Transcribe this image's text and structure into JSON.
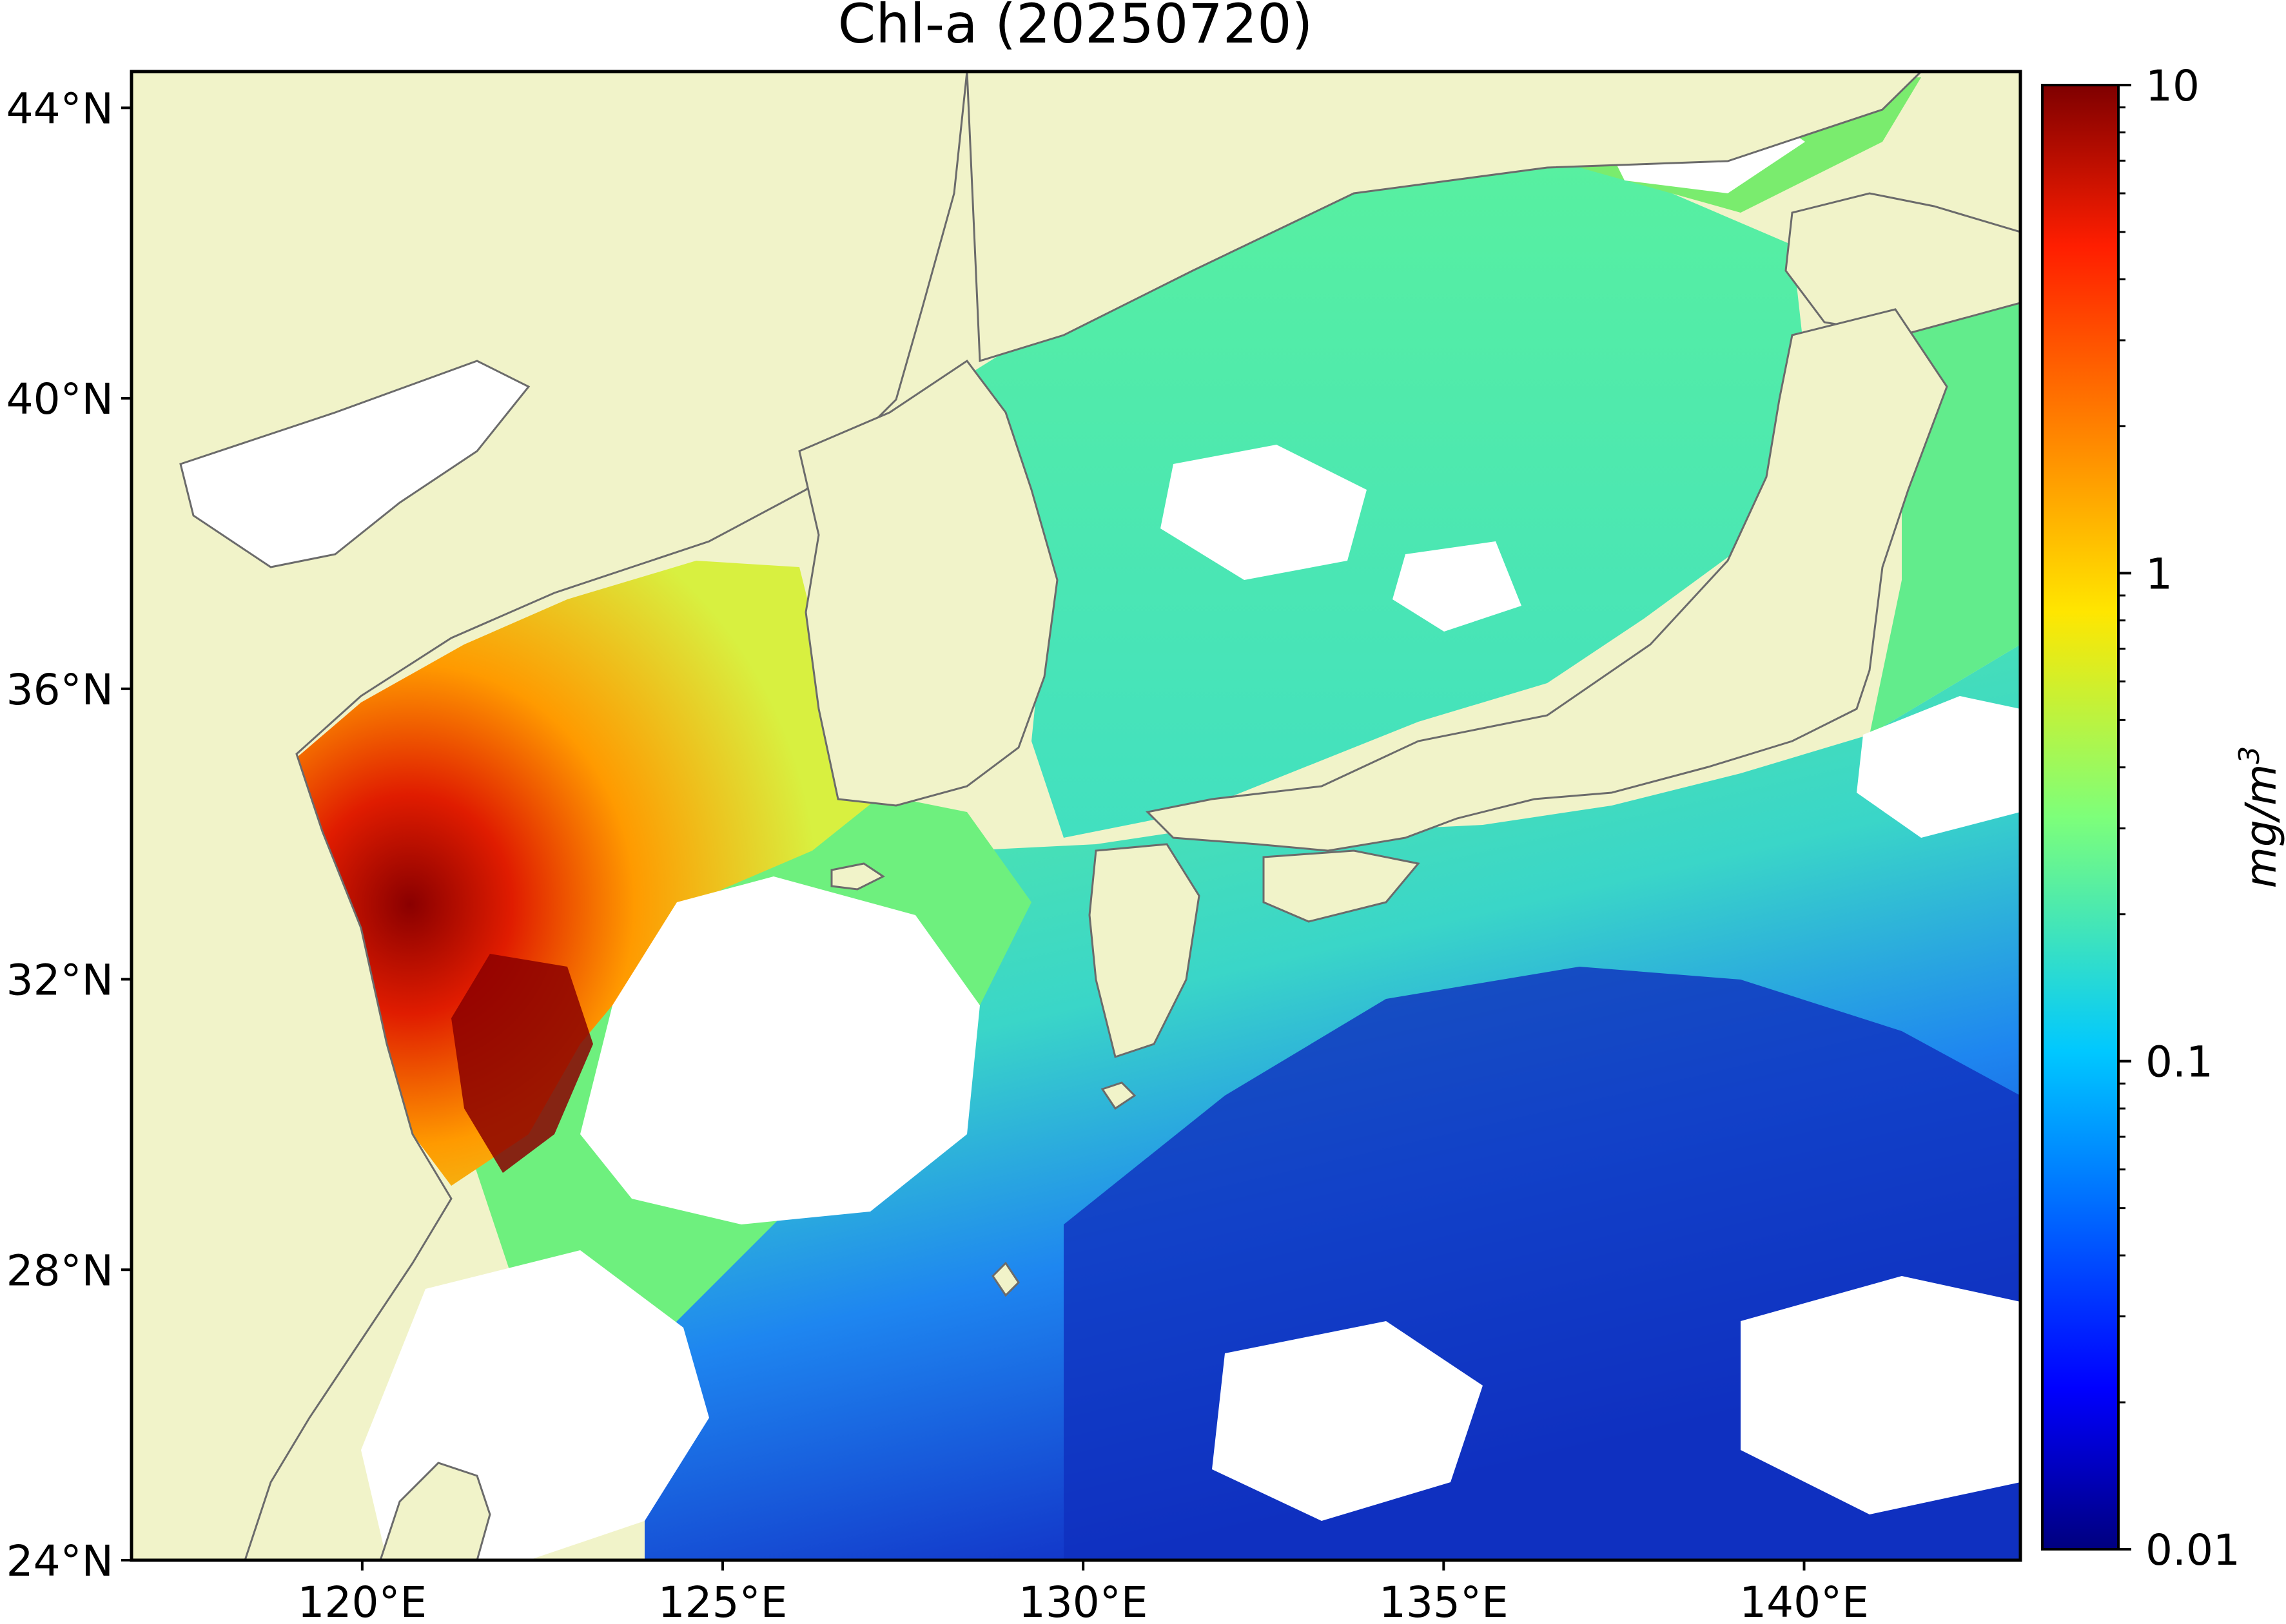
{
  "title": "Chl-a (20250720)",
  "map": {
    "type": "heatmap",
    "projection": "lat-lon",
    "lon_range": [
      116.8,
      143.0
    ],
    "lat_range": [
      24.0,
      44.5
    ],
    "x_ticks": [
      {
        "value": 120,
        "label": "120°E"
      },
      {
        "value": 125,
        "label": "125°E"
      },
      {
        "value": 130,
        "label": "130°E"
      },
      {
        "value": 135,
        "label": "135°E"
      },
      {
        "value": 140,
        "label": "140°E"
      }
    ],
    "y_ticks": [
      {
        "value": 44,
        "label": "44°N"
      },
      {
        "value": 40,
        "label": "40°N"
      },
      {
        "value": 36,
        "label": "36°N"
      },
      {
        "value": 32,
        "label": "32°N"
      },
      {
        "value": 28,
        "label": "28°N"
      },
      {
        "value": 24,
        "label": "24°N"
      }
    ],
    "land_color": "#f1f3c9",
    "coast_color": "#6b6b6b",
    "no_data_color": "#ffffff"
  },
  "colorbar": {
    "scale": "log",
    "range": [
      0.01,
      10
    ],
    "unit_label": "mg/m",
    "unit_sup": "3",
    "colormap": "jet",
    "ticks": [
      {
        "value": 10,
        "label": "10"
      },
      {
        "value": 1,
        "label": "1"
      },
      {
        "value": 0.1,
        "label": "0.1"
      },
      {
        "value": 0.01,
        "label": "0.01"
      }
    ]
  }
}
